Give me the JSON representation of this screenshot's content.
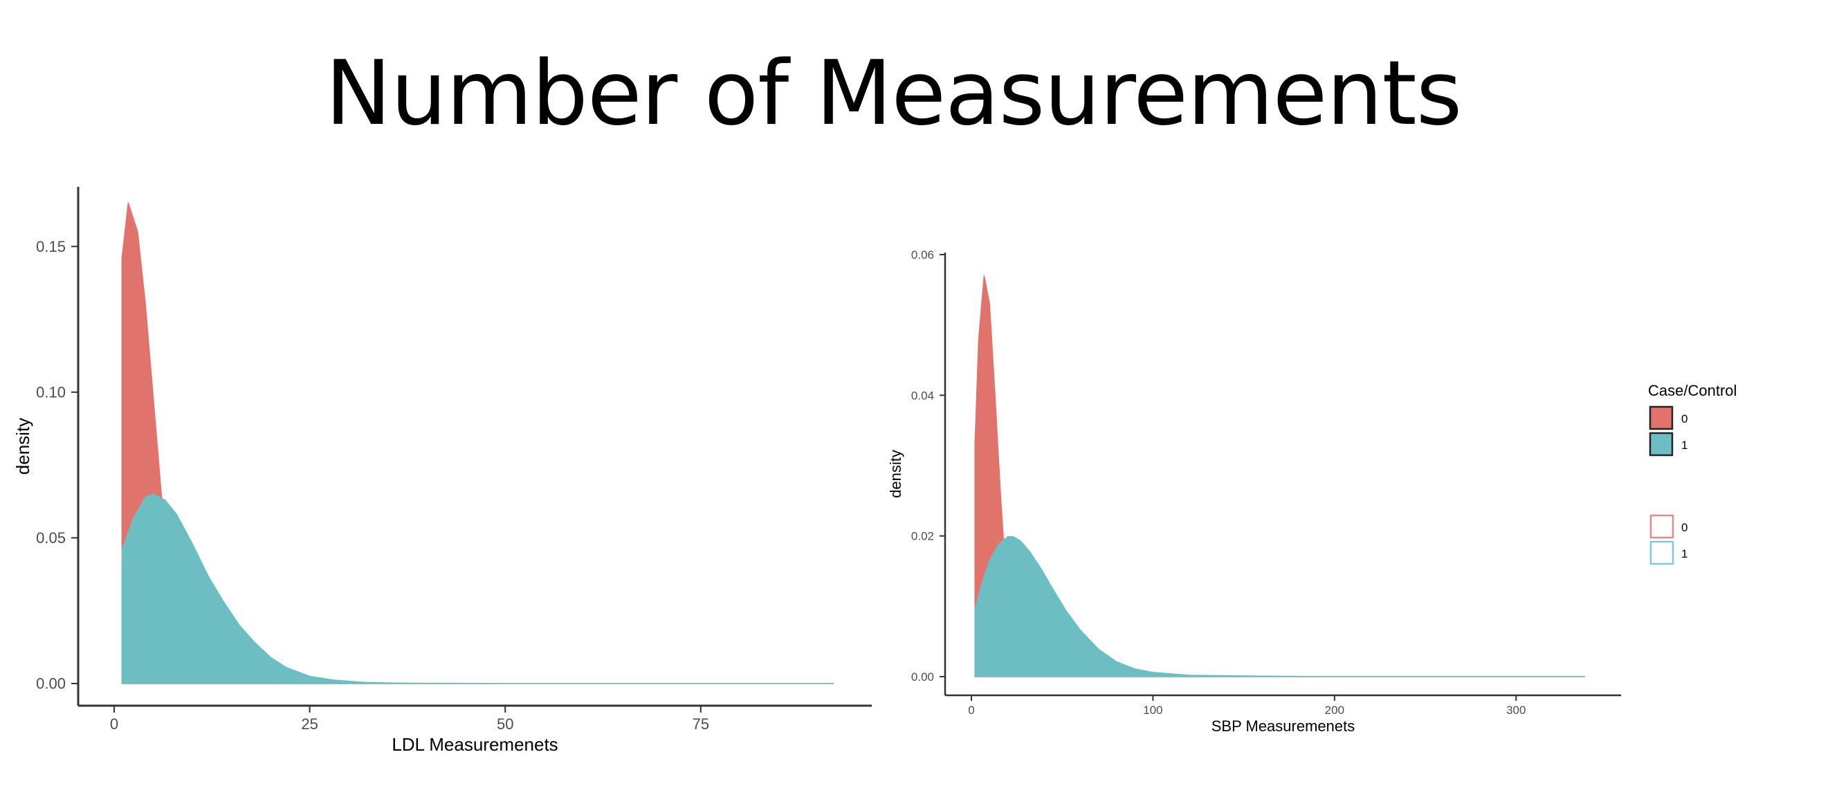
{
  "title": "Number of Measurements",
  "colors": {
    "group_0": "#e0736b",
    "group_1": "#6dbec2",
    "axis": "#333333",
    "legend_outline_0": "#e58a85",
    "legend_outline_1": "#7ccbcf"
  },
  "chart_data": [
    {
      "type": "area",
      "xlabel": "LDL Measuremenets",
      "ylabel": "density",
      "xlim": [
        0,
        92
      ],
      "ylim": [
        0,
        0.17
      ],
      "x_ticks": [
        0,
        25,
        50,
        75
      ],
      "y_ticks": [
        0.0,
        0.05,
        0.1,
        0.15
      ],
      "y_tick_labels": [
        "0.00",
        "0.05",
        "0.10",
        "0.15"
      ],
      "grid": false,
      "series": [
        {
          "name": "0",
          "color": "#e0736b",
          "x": [
            1,
            1.8,
            3,
            4,
            5,
            6,
            7,
            9,
            12,
            16,
            20,
            30,
            50,
            92
          ],
          "y": [
            0.146,
            0.165,
            0.155,
            0.13,
            0.098,
            0.066,
            0.04,
            0.012,
            0.002,
            0.0,
            0.0,
            0.0,
            0.0,
            0.0
          ]
        },
        {
          "name": "1",
          "color": "#6dbec2",
          "x": [
            1,
            2.5,
            4,
            5,
            6.5,
            8,
            10,
            12,
            14,
            16,
            18,
            20,
            22,
            25,
            28,
            32,
            36,
            40,
            50,
            60,
            75,
            92
          ],
          "y": [
            0.046,
            0.057,
            0.064,
            0.065,
            0.063,
            0.058,
            0.048,
            0.037,
            0.028,
            0.02,
            0.014,
            0.009,
            0.0055,
            0.0025,
            0.0012,
            0.0004,
            0.0002,
            0.0001,
            0.0,
            0.0,
            0.0,
            0.0
          ]
        }
      ]
    },
    {
      "type": "area",
      "xlabel": "SBP Measuremenets",
      "ylabel": "density",
      "xlim": [
        0,
        338
      ],
      "ylim": [
        0,
        0.06
      ],
      "x_ticks": [
        0,
        100,
        200,
        300
      ],
      "y_ticks": [
        0.0,
        0.02,
        0.04,
        0.06
      ],
      "y_tick_labels": [
        "0.00",
        "0.02",
        "0.04",
        "0.06"
      ],
      "grid": false,
      "series": [
        {
          "name": "0",
          "color": "#e0736b",
          "x": [
            2,
            4,
            7,
            10,
            13,
            16,
            19,
            22,
            26,
            30,
            40,
            60,
            100,
            338
          ],
          "y": [
            0.033,
            0.048,
            0.057,
            0.053,
            0.04,
            0.026,
            0.014,
            0.007,
            0.002,
            0.0005,
            0.0,
            0.0,
            0.0,
            0.0
          ]
        },
        {
          "name": "1",
          "color": "#6dbec2",
          "x": [
            2,
            6,
            10,
            15,
            20,
            23,
            27,
            32,
            38,
            45,
            52,
            60,
            70,
            80,
            90,
            100,
            120,
            150,
            200,
            250,
            338
          ],
          "y": [
            0.0095,
            0.0135,
            0.0165,
            0.0188,
            0.0199,
            0.0199,
            0.0193,
            0.0178,
            0.0155,
            0.0124,
            0.0094,
            0.0066,
            0.0039,
            0.0021,
            0.0011,
            0.0006,
            0.0002,
            0.0001,
            0.0,
            0.0,
            0.0
          ]
        }
      ]
    }
  ],
  "legend": {
    "title": "Case/Control",
    "filled": [
      {
        "label": "0",
        "color": "#e0736b"
      },
      {
        "label": "1",
        "color": "#6dbec2"
      }
    ],
    "outlined": [
      {
        "label": "0",
        "color": "#e58a85"
      },
      {
        "label": "1",
        "color": "#7ccbcf"
      }
    ]
  }
}
